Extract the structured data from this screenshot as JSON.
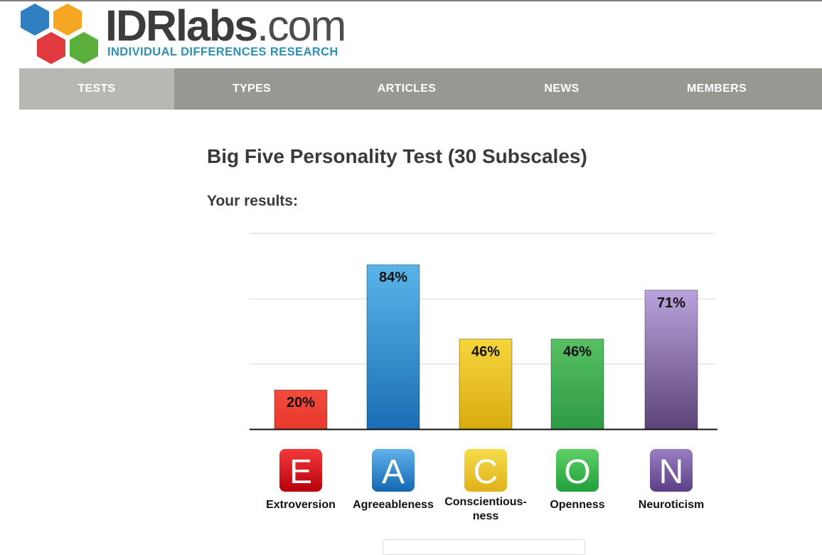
{
  "logo": {
    "name_main": "IDRlabs",
    "name_domain": ".com",
    "subtitle": "INDIVIDUAL DIFFERENCES RESEARCH",
    "hex_colors": [
      "#2f7fc1",
      "#f5a623",
      "#e03a3e",
      "#5aaf3c"
    ]
  },
  "nav": {
    "items": [
      {
        "label": "TESTS",
        "active": true
      },
      {
        "label": "TYPES",
        "active": false
      },
      {
        "label": "ARTICLES",
        "active": false
      },
      {
        "label": "NEWS",
        "active": false
      },
      {
        "label": "MEMBERS",
        "active": false
      }
    ]
  },
  "main": {
    "title": "Big Five Personality Test (30 Subscales)",
    "results_label": "Your results:"
  },
  "chart_data": {
    "type": "bar",
    "categories": [
      "Extroversion",
      "Agreeableness",
      "Conscientiousness",
      "Openness",
      "Neuroticism"
    ],
    "category_labels": [
      [
        "Extroversion"
      ],
      [
        "Agreeableness"
      ],
      [
        "Conscientious-",
        "ness"
      ],
      [
        "Openness"
      ],
      [
        "Neuroticism"
      ]
    ],
    "letters": [
      "E",
      "A",
      "C",
      "O",
      "N"
    ],
    "values": [
      20,
      84,
      46,
      46,
      71
    ],
    "value_labels": [
      "20%",
      "84%",
      "46%",
      "46%",
      "71%"
    ],
    "ylim": [
      0,
      100
    ],
    "grid": true,
    "colors": [
      {
        "top": "#f24b3d",
        "bottom": "#e8392c"
      },
      {
        "top": "#5ab4e8",
        "bottom": "#1a6fb5"
      },
      {
        "top": "#f5d63b",
        "bottom": "#d9ab10"
      },
      {
        "top": "#57c062",
        "bottom": "#2e9a45"
      },
      {
        "top": "#b9a3dc",
        "bottom": "#5d4477"
      }
    ],
    "icon_colors": [
      {
        "top": "#f23a3a",
        "bottom": "#b8000b"
      },
      {
        "top": "#5fb2ec",
        "bottom": "#1467b0"
      },
      {
        "top": "#f6dc4a",
        "bottom": "#e0b11a"
      },
      {
        "top": "#5fd067",
        "bottom": "#21a03b"
      },
      {
        "top": "#9a7fc4",
        "bottom": "#5b3f86"
      }
    ]
  }
}
